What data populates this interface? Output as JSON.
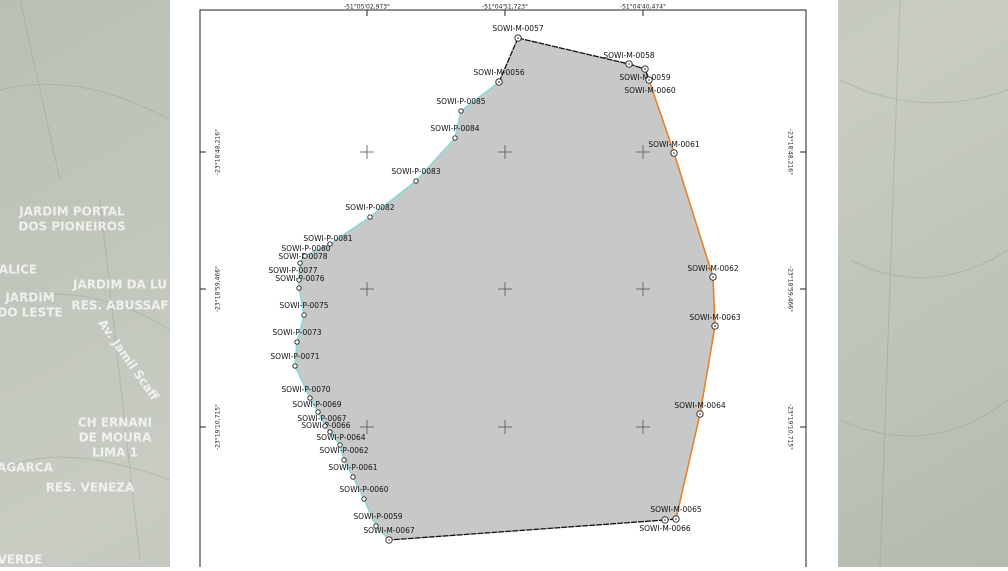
{
  "background_labels": [
    "JARDIM PORTAL",
    "DOS PIONEIROS",
    "ALICE",
    "JARDIM DA LU",
    "JARDIM",
    "DO LESTE",
    "RES. ABUSSAF",
    "Av. Jamil Scaff",
    "CH ERNANI",
    "DE MOURA",
    "LIMA 1",
    "AGARCA",
    "RES. VENEZA",
    "VERDE"
  ],
  "grid": {
    "longitudes": [
      "-51°05'02,973°",
      "-51°04'51,723°",
      "-51°04'40,474°"
    ],
    "latitudes": [
      "-23°18'48,216°",
      "-23°18'59,466°",
      "-23°19'10,715°"
    ]
  },
  "vertices": [
    "SOWI-M-0057",
    "SOWI-M-0058",
    "SOWI-M-0059",
    "SOWI-M-0060",
    "SOWI-M-0061",
    "SOWI-M-0062",
    "SOWI-M-0063",
    "SOWI-M-0064",
    "SOWI-M-0065",
    "SOWI-M-0066",
    "SOWI-M-0067",
    "SOWI-P-0059",
    "SOWI-P-0060",
    "SOWI-P-0061",
    "SOWI-P-0062",
    "SOWI-P-0064",
    "SOWI-P-0066",
    "SOWI-P-0067",
    "SOWI-P-0069",
    "SOWI-P-0070",
    "SOWI-P-0071",
    "SOWI-P-0073",
    "SOWI-P-0075",
    "SOWI-P-0076",
    "SOWI-P-0077",
    "SOWI-P-0078",
    "SOWI-P-0080",
    "SOWI-P-0081",
    "SOWI-P-0082",
    "SOWI-P-0083",
    "SOWI-P-0084",
    "SOWI-P-0085",
    "SOWI-M-0056"
  ]
}
